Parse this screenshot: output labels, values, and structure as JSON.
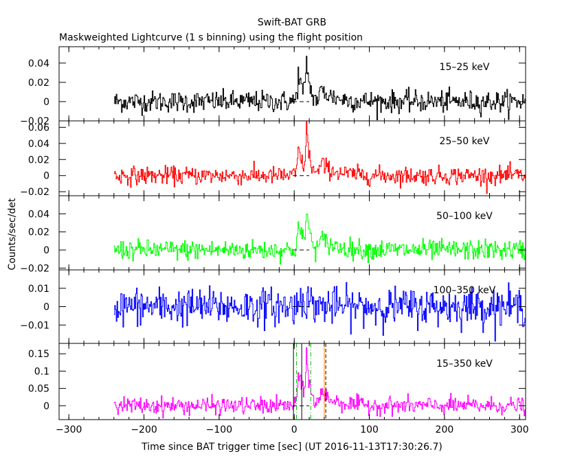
{
  "title": "Swift-BAT GRB",
  "subtitle": "Maskweighted Lightcurve (1 s binning) using the flight position",
  "chart_data": {
    "type": "line",
    "xlabel": "Time since BAT trigger time [sec] (UT 2016-11-13T17:30:26.7)",
    "ylabel": "Counts/sec/det",
    "xlim": [
      -313,
      308
    ],
    "x_ticks": [
      -300,
      -200,
      -100,
      0,
      100,
      200,
      300
    ],
    "data_x_range": [
      -240,
      308
    ],
    "vertical_markers": {
      "black_solid": [
        -1,
        10
      ],
      "green_dashdot": [
        3,
        22
      ],
      "orange_solid": [
        40
      ],
      "black_dashed": [
        42
      ]
    },
    "panels": [
      {
        "label": "15–25 keV",
        "color": "#000000",
        "ylim": [
          -0.02,
          0.057
        ],
        "y_ticks": [
          -0.02,
          0,
          0.02,
          0.04
        ],
        "y_tick_labels": [
          "−0.02",
          "0",
          "0.02",
          "0.04"
        ],
        "noise": 0.0055,
        "pulses": [
          [
            5,
            0.03,
            6
          ],
          [
            16,
            0.04,
            4
          ],
          [
            35,
            0.012,
            18
          ]
        ]
      },
      {
        "label": "25–50 keV",
        "color": "#ff0000",
        "ylim": [
          -0.025,
          0.068
        ],
        "y_ticks": [
          -0.02,
          0,
          0.02,
          0.04,
          0.06
        ],
        "y_tick_labels": [
          "−0.02",
          "0",
          "0.02",
          "0.04",
          "0.06"
        ],
        "noise": 0.0055,
        "pulses": [
          [
            5,
            0.035,
            6
          ],
          [
            16,
            0.055,
            4
          ],
          [
            35,
            0.015,
            18
          ]
        ]
      },
      {
        "label": "50–100 keV",
        "color": "#00ff00",
        "ylim": [
          -0.022,
          0.06
        ],
        "y_ticks": [
          -0.02,
          0,
          0.02,
          0.04
        ],
        "y_tick_labels": [
          "−0.02",
          "0",
          "0.02",
          "0.04"
        ],
        "noise": 0.0055,
        "pulses": [
          [
            5,
            0.03,
            6
          ],
          [
            16,
            0.045,
            4
          ],
          [
            35,
            0.012,
            18
          ]
        ]
      },
      {
        "label": "100–350 keV",
        "color": "#0000ff",
        "ylim": [
          -0.02,
          0.02
        ],
        "y_ticks": [
          -0.01,
          0,
          0.01
        ],
        "y_tick_labels": [
          "−0.01",
          "0",
          "0.01"
        ],
        "noise": 0.005,
        "pulses": [
          [
            8,
            0.006,
            12
          ]
        ]
      },
      {
        "label": "15–350 keV",
        "color": "#ff00ff",
        "ylim": [
          -0.04,
          0.18
        ],
        "y_ticks": [
          0,
          0.05,
          0.1,
          0.15
        ],
        "y_tick_labels": [
          "0",
          "0.05",
          "0.1",
          "0.15"
        ],
        "noise": 0.012,
        "pulses": [
          [
            5,
            0.1,
            6
          ],
          [
            16,
            0.15,
            4
          ],
          [
            35,
            0.04,
            18
          ]
        ]
      }
    ]
  }
}
